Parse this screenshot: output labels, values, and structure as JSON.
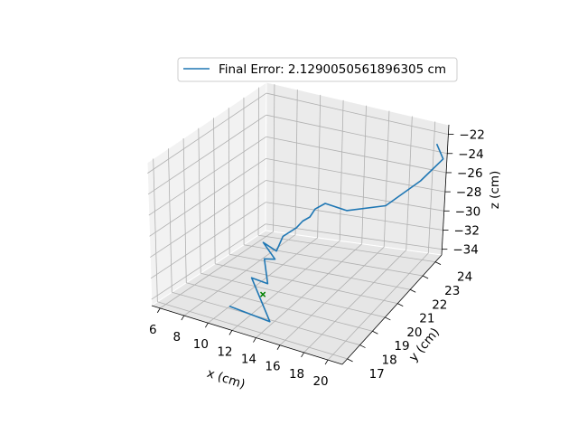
{
  "chart_data": {
    "type": "line",
    "projection": "3d",
    "xlabel": "x (cm)",
    "ylabel": "y (cm)",
    "zlabel": "z (cm)",
    "x_ticks": [
      "6",
      "8",
      "10",
      "12",
      "14",
      "16",
      "18",
      "20"
    ],
    "y_ticks": [
      "17",
      "18",
      "19",
      "20",
      "21",
      "22",
      "23",
      "24"
    ],
    "z_ticks": [
      "−22",
      "−24",
      "−26",
      "−28",
      "−30",
      "−32",
      "−34"
    ],
    "legend": {
      "placement": "top-center",
      "entries": [
        "Final Error: 2.1290050561896305 cm"
      ]
    },
    "grid": true,
    "series": [
      {
        "name": "Final Error: 2.1290050561896305 cm",
        "color": "#1f77b4",
        "x": [
          11.0,
          14.5,
          10.3,
          12.5,
          10.8,
          11.0,
          9.5,
          10.4,
          11.2,
          12.0,
          12.3,
          12.8,
          13.0,
          13.4,
          14.8,
          17.5,
          20.0,
          21.2,
          20.8
        ],
        "y": [
          17.3,
          17.2,
          19.5,
          18.8,
          20.0,
          20.6,
          21.0,
          21.2,
          21.0,
          21.3,
          21.5,
          21.6,
          21.8,
          22.2,
          22.6,
          23.2,
          23.6,
          24.2,
          24.0
        ],
        "z": [
          -33.4,
          -33.6,
          -33.2,
          -32.4,
          -31.8,
          -32.4,
          -31.6,
          -32.4,
          -30.6,
          -29.9,
          -29.4,
          -29.0,
          -28.4,
          -28.2,
          -29.0,
          -28.6,
          -26.0,
          -24.2,
          -22.5
        ]
      }
    ],
    "markers": [
      {
        "symbol": "x",
        "color": "#008000",
        "x": 12.2,
        "y": 18.7,
        "z": -33.4
      }
    ]
  }
}
